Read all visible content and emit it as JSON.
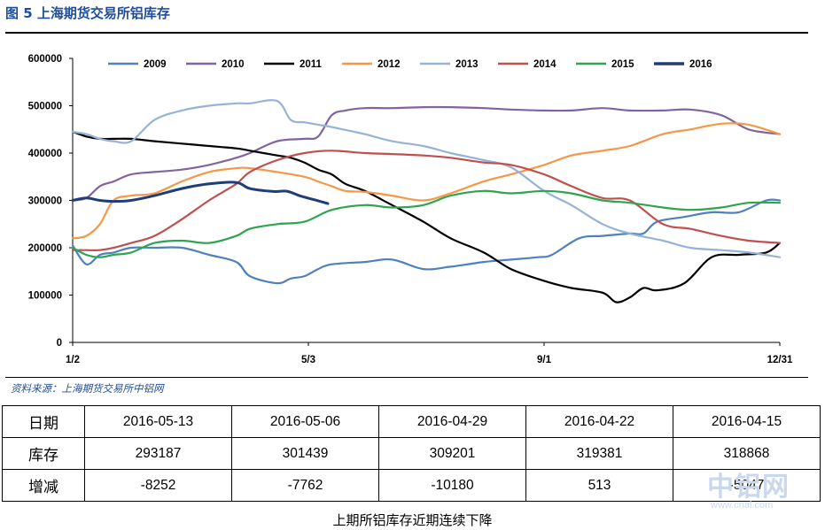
{
  "figure": {
    "title": "图 5 上海期货交易所铝库存",
    "source": "资料来源：上海期货交易所中铝网",
    "caption": "上期所铝库存近期连续下降"
  },
  "watermark": {
    "main": "中铝网",
    "sub": "www.cnal.com"
  },
  "chart_data": {
    "type": "line",
    "title": "",
    "xlabel": "",
    "ylabel": "",
    "ylim": [
      0,
      600000
    ],
    "yticks": [
      0,
      100000,
      200000,
      300000,
      400000,
      500000,
      600000
    ],
    "x_domain": [
      "1/2",
      "12/31"
    ],
    "xticks": [
      {
        "label": "1/2",
        "date": "1/2"
      },
      {
        "label": "5/3",
        "date": "5/3"
      },
      {
        "label": "9/1",
        "date": "9/1"
      },
      {
        "label": "12/31",
        "date": "12/31"
      }
    ],
    "grid": false,
    "legend": "top",
    "series": [
      {
        "name": "2009",
        "color": "#4f81bd",
        "x": [
          "1/2",
          "1/9",
          "1/16",
          "1/23",
          "2/1",
          "2/13",
          "2/27",
          "3/13",
          "3/27",
          "4/3",
          "4/17",
          "4/24",
          "5/1",
          "5/8",
          "5/15",
          "6/1",
          "6/15",
          "7/1",
          "7/15",
          "8/1",
          "8/15",
          "8/29",
          "9/5",
          "9/19",
          "10/1",
          "10/15",
          "10/22",
          "10/29",
          "11/12",
          "11/26",
          "12/10",
          "12/24",
          "12/31"
        ],
        "y": [
          205000,
          165000,
          185000,
          190000,
          200000,
          200000,
          200000,
          185000,
          170000,
          140000,
          125000,
          135000,
          140000,
          155000,
          165000,
          170000,
          175000,
          155000,
          160000,
          170000,
          175000,
          180000,
          185000,
          220000,
          225000,
          230000,
          230000,
          255000,
          265000,
          275000,
          275000,
          300000,
          300000
        ]
      },
      {
        "name": "2010",
        "color": "#8064a2",
        "x": [
          "1/2",
          "1/9",
          "1/16",
          "1/23",
          "2/1",
          "2/13",
          "2/27",
          "3/13",
          "3/27",
          "4/3",
          "4/17",
          "5/1",
          "5/8",
          "5/15",
          "5/22",
          "6/1",
          "6/15",
          "7/1",
          "7/15",
          "8/1",
          "8/15",
          "9/1",
          "9/15",
          "10/1",
          "10/15",
          "11/1",
          "11/15",
          "12/1",
          "12/15",
          "12/31"
        ],
        "y": [
          300000,
          305000,
          330000,
          340000,
          355000,
          360000,
          365000,
          375000,
          390000,
          400000,
          425000,
          430000,
          435000,
          480000,
          490000,
          495000,
          495000,
          497000,
          497000,
          495000,
          492000,
          490000,
          490000,
          495000,
          490000,
          490000,
          492000,
          480000,
          450000,
          440000
        ]
      },
      {
        "name": "2011",
        "color": "#000000",
        "x": [
          "1/2",
          "1/9",
          "1/16",
          "1/23",
          "2/1",
          "2/13",
          "2/27",
          "3/13",
          "3/27",
          "4/3",
          "4/17",
          "4/24",
          "5/1",
          "5/8",
          "5/15",
          "5/22",
          "6/1",
          "6/15",
          "7/1",
          "7/15",
          "8/1",
          "8/15",
          "9/1",
          "9/15",
          "10/1",
          "10/8",
          "10/15",
          "10/22",
          "10/29",
          "11/12",
          "11/26",
          "12/10",
          "12/24",
          "12/31"
        ],
        "y": [
          445000,
          435000,
          430000,
          430000,
          430000,
          425000,
          420000,
          415000,
          410000,
          405000,
          395000,
          390000,
          380000,
          365000,
          355000,
          335000,
          320000,
          290000,
          255000,
          220000,
          190000,
          155000,
          130000,
          115000,
          105000,
          85000,
          95000,
          115000,
          110000,
          125000,
          180000,
          185000,
          190000,
          210000
        ]
      },
      {
        "name": "2012",
        "color": "#f79646",
        "x": [
          "1/2",
          "1/9",
          "1/16",
          "1/23",
          "2/1",
          "2/13",
          "2/27",
          "3/13",
          "3/27",
          "4/3",
          "4/17",
          "5/1",
          "5/8",
          "5/15",
          "5/22",
          "6/1",
          "6/15",
          "7/1",
          "7/15",
          "8/1",
          "8/15",
          "9/1",
          "9/15",
          "10/1",
          "10/15",
          "11/1",
          "11/15",
          "12/1",
          "12/15",
          "12/31"
        ],
        "y": [
          220000,
          225000,
          250000,
          300000,
          310000,
          315000,
          340000,
          360000,
          368000,
          368000,
          360000,
          350000,
          340000,
          330000,
          320000,
          318000,
          310000,
          300000,
          315000,
          340000,
          355000,
          375000,
          395000,
          405000,
          415000,
          440000,
          450000,
          462000,
          460000,
          440000
        ]
      },
      {
        "name": "2013",
        "color": "#95b3d7",
        "x": [
          "1/2",
          "1/9",
          "1/16",
          "1/23",
          "2/1",
          "2/13",
          "2/27",
          "3/13",
          "3/27",
          "4/3",
          "4/17",
          "4/24",
          "5/1",
          "5/8",
          "5/15",
          "6/1",
          "6/15",
          "7/1",
          "7/15",
          "8/1",
          "8/15",
          "9/1",
          "9/15",
          "10/1",
          "10/15",
          "11/1",
          "11/15",
          "12/1",
          "12/15",
          "12/31"
        ],
        "y": [
          445000,
          440000,
          430000,
          425000,
          425000,
          470000,
          490000,
          500000,
          505000,
          505000,
          510000,
          470000,
          465000,
          460000,
          455000,
          440000,
          425000,
          415000,
          400000,
          385000,
          370000,
          320000,
          290000,
          250000,
          230000,
          215000,
          200000,
          195000,
          190000,
          180000
        ]
      },
      {
        "name": "2014",
        "color": "#c0504d",
        "x": [
          "1/2",
          "1/9",
          "1/16",
          "1/23",
          "2/1",
          "2/13",
          "2/27",
          "3/13",
          "3/27",
          "4/3",
          "4/17",
          "5/1",
          "5/15",
          "6/1",
          "6/15",
          "7/1",
          "7/15",
          "8/1",
          "8/15",
          "9/1",
          "9/15",
          "10/1",
          "10/15",
          "11/1",
          "11/15",
          "12/1",
          "12/15",
          "12/31"
        ],
        "y": [
          195000,
          195000,
          195000,
          200000,
          210000,
          225000,
          260000,
          300000,
          335000,
          360000,
          385000,
          400000,
          405000,
          400000,
          398000,
          395000,
          390000,
          380000,
          375000,
          355000,
          330000,
          305000,
          300000,
          250000,
          240000,
          225000,
          215000,
          210000
        ]
      },
      {
        "name": "2015",
        "color": "#2ea44f",
        "x": [
          "1/2",
          "1/9",
          "1/16",
          "1/23",
          "2/1",
          "2/13",
          "2/27",
          "3/13",
          "3/27",
          "4/3",
          "4/17",
          "5/1",
          "5/15",
          "6/1",
          "6/15",
          "7/1",
          "7/15",
          "8/1",
          "8/15",
          "9/1",
          "9/15",
          "10/1",
          "10/15",
          "11/1",
          "11/15",
          "12/1",
          "12/15",
          "12/31"
        ],
        "y": [
          200000,
          185000,
          180000,
          185000,
          190000,
          210000,
          215000,
          210000,
          225000,
          240000,
          250000,
          255000,
          280000,
          290000,
          285000,
          290000,
          310000,
          320000,
          315000,
          320000,
          315000,
          300000,
          295000,
          285000,
          280000,
          285000,
          295000,
          295000
        ]
      },
      {
        "name": "2016",
        "color": "#1f3d7a",
        "x": [
          "1/2",
          "1/9",
          "1/16",
          "1/23",
          "2/1",
          "2/13",
          "2/27",
          "3/13",
          "3/27",
          "4/3",
          "4/15",
          "4/22",
          "4/29",
          "5/6",
          "5/13"
        ],
        "y": [
          300000,
          305000,
          300000,
          298000,
          300000,
          310000,
          325000,
          335000,
          338000,
          325000,
          318868,
          319381,
          309201,
          301439,
          293187
        ]
      }
    ]
  },
  "table": {
    "rows": [
      {
        "head": "日期",
        "cells": [
          "2016-05-13",
          "2016-05-06",
          "2016-04-29",
          "2016-04-22",
          "2016-04-15"
        ]
      },
      {
        "head": "库存",
        "cells": [
          "293187",
          "301439",
          "309201",
          "319381",
          "318868"
        ]
      },
      {
        "head": "增减",
        "cells": [
          "-8252",
          "-7762",
          "-10180",
          "513",
          "-5047"
        ]
      }
    ]
  }
}
